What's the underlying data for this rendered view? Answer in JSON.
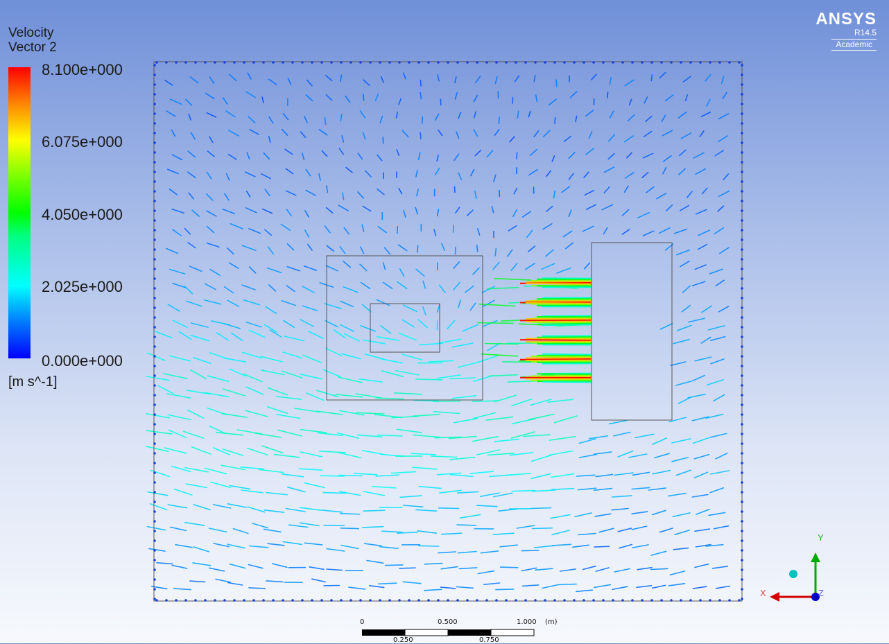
{
  "legend": {
    "title_line1": "Velocity",
    "title_line2": "Vector 2",
    "max_label": "8.100e+000",
    "label_2": "6.075e+000",
    "label_3": "4.050e+000",
    "label_4": "2.025e+000",
    "min_label": "0.000e+000",
    "unit": "[m s^-1]",
    "max_value": 8.1,
    "min_value": 0.0,
    "colormap": [
      "#0000ff",
      "#0080ff",
      "#00ffff",
      "#00ff80",
      "#00ff00",
      "#80ff00",
      "#ffff00",
      "#ff8000",
      "#ff0000"
    ]
  },
  "brand": {
    "name": "ANSYS",
    "version": "R14.5",
    "edition": "Academic"
  },
  "scale_bar": {
    "label_0": "0",
    "label_0_5": "0.500",
    "label_1": "1.000",
    "unit": "(m)",
    "label_0_25": "0.250",
    "label_0_75": "0.750"
  },
  "axes": {
    "x": "X",
    "y": "Y",
    "z": "Z",
    "x_color": "#d40000",
    "y_color": "#00a800",
    "z_color": "#0000cc"
  }
}
